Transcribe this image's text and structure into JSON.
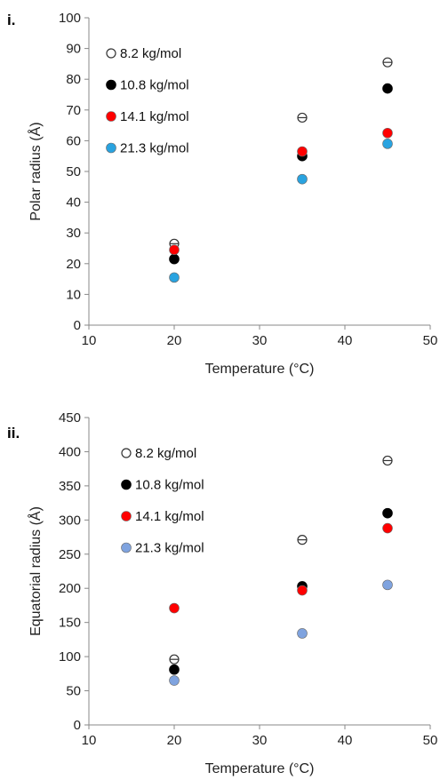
{
  "chart_data": [
    {
      "type": "scatter",
      "panel_label": "i.",
      "xlabel": "Temperature (°C)",
      "ylabel": "Polar radius (Å)",
      "xlim": [
        10,
        50
      ],
      "ylim": [
        0,
        100
      ],
      "xticks": [
        10,
        20,
        30,
        40,
        50
      ],
      "yticks": [
        0,
        10,
        20,
        30,
        40,
        50,
        60,
        70,
        80,
        90,
        100
      ],
      "grid": false,
      "legend_position": "top-left",
      "series": [
        {
          "name": "8.2 kg/mol",
          "marker": "open-circle-with-errorbar",
          "color": "#ffffff",
          "x": [
            20,
            35,
            45
          ],
          "y": [
            26.5,
            67.5,
            85.5
          ]
        },
        {
          "name": "10.8 kg/mol",
          "marker": "filled-circle",
          "color": "#000000",
          "x": [
            20,
            35,
            45
          ],
          "y": [
            21.5,
            55,
            77
          ]
        },
        {
          "name": "14.1 kg/mol",
          "marker": "filled-circle",
          "color": "#ff0000",
          "x": [
            20,
            35,
            45
          ],
          "y": [
            24.5,
            56.5,
            62.5
          ]
        },
        {
          "name": "21.3 kg/mol",
          "marker": "filled-circle",
          "color": "#29a3e0",
          "x": [
            20,
            35,
            45
          ],
          "y": [
            15.5,
            47.5,
            59
          ]
        }
      ]
    },
    {
      "type": "scatter",
      "panel_label": "ii.",
      "xlabel": "Temperature (°C)",
      "ylabel": "Equatorial radius (Å)",
      "xlim": [
        10,
        50
      ],
      "ylim": [
        0,
        450
      ],
      "xticks": [
        10,
        20,
        30,
        40,
        50
      ],
      "yticks": [
        0,
        50,
        100,
        150,
        200,
        250,
        300,
        350,
        400,
        450
      ],
      "grid": false,
      "legend_position": "top-left",
      "series": [
        {
          "name": "8.2 kg/mol",
          "marker": "open-circle-with-errorbar",
          "color": "#ffffff",
          "x": [
            20,
            35,
            45
          ],
          "y": [
            96,
            271,
            387
          ]
        },
        {
          "name": "10.8 kg/mol",
          "marker": "filled-circle",
          "color": "#000000",
          "x": [
            20,
            35,
            45
          ],
          "y": [
            81,
            203,
            310
          ]
        },
        {
          "name": "14.1 kg/mol",
          "marker": "filled-circle",
          "color": "#ff0000",
          "x": [
            20,
            35,
            45
          ],
          "y": [
            171,
            197,
            288
          ]
        },
        {
          "name": "21.3 kg/mol",
          "marker": "filled-circle",
          "color": "#7fa3df",
          "x": [
            20,
            35,
            45
          ],
          "y": [
            65,
            134,
            205
          ]
        }
      ]
    }
  ]
}
